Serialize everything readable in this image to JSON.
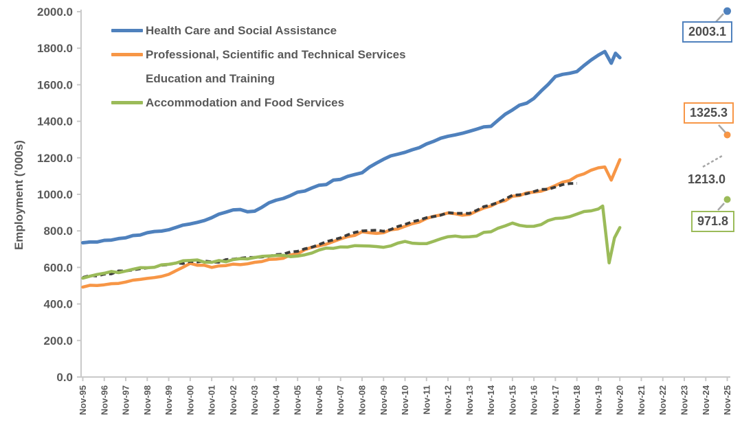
{
  "chart_data": {
    "type": "line",
    "title": "",
    "ylabel": "Employment ('000s)",
    "ylim": [
      0,
      2000
    ],
    "y_tick_step": 200,
    "y_tick_format": "one-decimal",
    "x_tick_labels": [
      "Nov-95",
      "Nov-96",
      "Nov-97",
      "Nov-98",
      "Nov-99",
      "Nov-00",
      "Nov-01",
      "Nov-02",
      "Nov-03",
      "Nov-04",
      "Nov-05",
      "Nov-06",
      "Nov-07",
      "Nov-08",
      "Nov-09",
      "Nov-10",
      "Nov-11",
      "Nov-12",
      "Nov-13",
      "Nov-14",
      "Nov-15",
      "Nov-16",
      "Nov-17",
      "Nov-18",
      "Nov-19",
      "Nov-20",
      "Nov-21",
      "Nov-22",
      "Nov-23",
      "Nov-24",
      "Nov-25"
    ],
    "x_unit": "years-since-Nov-95",
    "grid": false,
    "legend_position": "top-left",
    "wiggle_amplitude": 7,
    "draw_order": [
      1,
      2,
      3,
      0
    ],
    "series": [
      {
        "name": "Health Care and Social Assistance",
        "color": "#4F81BD",
        "style": "solid",
        "points": [
          [
            0,
            735
          ],
          [
            1,
            748
          ],
          [
            2,
            762
          ],
          [
            3,
            790
          ],
          [
            4,
            806
          ],
          [
            5,
            838
          ],
          [
            6,
            872
          ],
          [
            7,
            915
          ],
          [
            8,
            908
          ],
          [
            9,
            968
          ],
          [
            10,
            1012
          ],
          [
            11,
            1050
          ],
          [
            12,
            1082
          ],
          [
            13,
            1118
          ],
          [
            14,
            1192
          ],
          [
            15,
            1230
          ],
          [
            16,
            1276
          ],
          [
            17,
            1318
          ],
          [
            18,
            1345
          ],
          [
            19,
            1372
          ],
          [
            20,
            1462
          ],
          [
            21,
            1525
          ],
          [
            22,
            1645
          ],
          [
            23,
            1672
          ],
          [
            24,
            1762
          ],
          [
            24.3,
            1782
          ],
          [
            24.6,
            1718
          ],
          [
            24.8,
            1772
          ],
          [
            25,
            1748
          ]
        ],
        "forecast": {
          "t": 30,
          "value": 2003.1,
          "label": "2003.1",
          "boxed": true,
          "dot": true
        }
      },
      {
        "name": "Professional, Scientific and Technical Services",
        "color": "#F79646",
        "style": "solid",
        "points": [
          [
            0,
            492
          ],
          [
            1,
            505
          ],
          [
            2,
            520
          ],
          [
            3,
            540
          ],
          [
            4,
            562
          ],
          [
            5,
            622
          ],
          [
            6,
            600
          ],
          [
            7,
            618
          ],
          [
            8,
            628
          ],
          [
            9,
            645
          ],
          [
            10,
            675
          ],
          [
            11,
            718
          ],
          [
            12,
            756
          ],
          [
            13,
            795
          ],
          [
            14,
            790
          ],
          [
            15,
            825
          ],
          [
            16,
            868
          ],
          [
            17,
            898
          ],
          [
            18,
            890
          ],
          [
            19,
            936
          ],
          [
            20,
            990
          ],
          [
            21,
            1012
          ],
          [
            22,
            1048
          ],
          [
            23,
            1100
          ],
          [
            24,
            1145
          ],
          [
            24.3,
            1150
          ],
          [
            24.6,
            1078
          ],
          [
            25,
            1190
          ]
        ],
        "forecast": {
          "t": 30,
          "value": 1325.3,
          "label": "1325.3",
          "boxed": true,
          "dot": true
        }
      },
      {
        "name": "Education and Training",
        "color": "#3B3B3B",
        "style": "dashed",
        "points": [
          [
            0,
            545
          ],
          [
            1,
            563
          ],
          [
            2,
            580
          ],
          [
            3,
            597
          ],
          [
            4,
            615
          ],
          [
            5,
            633
          ],
          [
            6,
            630
          ],
          [
            7,
            645
          ],
          [
            8,
            655
          ],
          [
            9,
            670
          ],
          [
            10,
            688
          ],
          [
            11,
            725
          ],
          [
            12,
            762
          ],
          [
            13,
            800
          ],
          [
            14,
            798
          ],
          [
            15,
            835
          ],
          [
            16,
            872
          ],
          [
            17,
            900
          ],
          [
            18,
            896
          ],
          [
            19,
            942
          ],
          [
            20,
            995
          ],
          [
            21,
            1015
          ],
          [
            22,
            1040
          ],
          [
            23,
            1060
          ]
        ],
        "forecast": {
          "t": 30,
          "value": 1213.0,
          "label": "1213.0",
          "boxed": false,
          "dot": false
        }
      },
      {
        "name": "Accommodation and Food Services",
        "color": "#9BBB59",
        "style": "solid",
        "points": [
          [
            0,
            541
          ],
          [
            1,
            568
          ],
          [
            2,
            580
          ],
          [
            3,
            598
          ],
          [
            4,
            617
          ],
          [
            5,
            638
          ],
          [
            6,
            628
          ],
          [
            7,
            643
          ],
          [
            8,
            654
          ],
          [
            9,
            665
          ],
          [
            10,
            662
          ],
          [
            11,
            695
          ],
          [
            12,
            712
          ],
          [
            13,
            718
          ],
          [
            14,
            710
          ],
          [
            15,
            742
          ],
          [
            16,
            730
          ],
          [
            17,
            768
          ],
          [
            18,
            768
          ],
          [
            19,
            795
          ],
          [
            20,
            843
          ],
          [
            21,
            825
          ],
          [
            22,
            868
          ],
          [
            23,
            892
          ],
          [
            24,
            920
          ],
          [
            24.2,
            936
          ],
          [
            24.5,
            625
          ],
          [
            24.75,
            762
          ],
          [
            25,
            818
          ]
        ],
        "forecast": {
          "t": 30,
          "value": 971.8,
          "label": "971.8",
          "boxed": true,
          "dot": true
        }
      }
    ]
  },
  "colors": {
    "background": "#FFFFFF",
    "axis": "#C9C9C9",
    "tick_text": "#595959",
    "callout_text": "#4D4D4D",
    "leader": "#A6A6A6"
  }
}
